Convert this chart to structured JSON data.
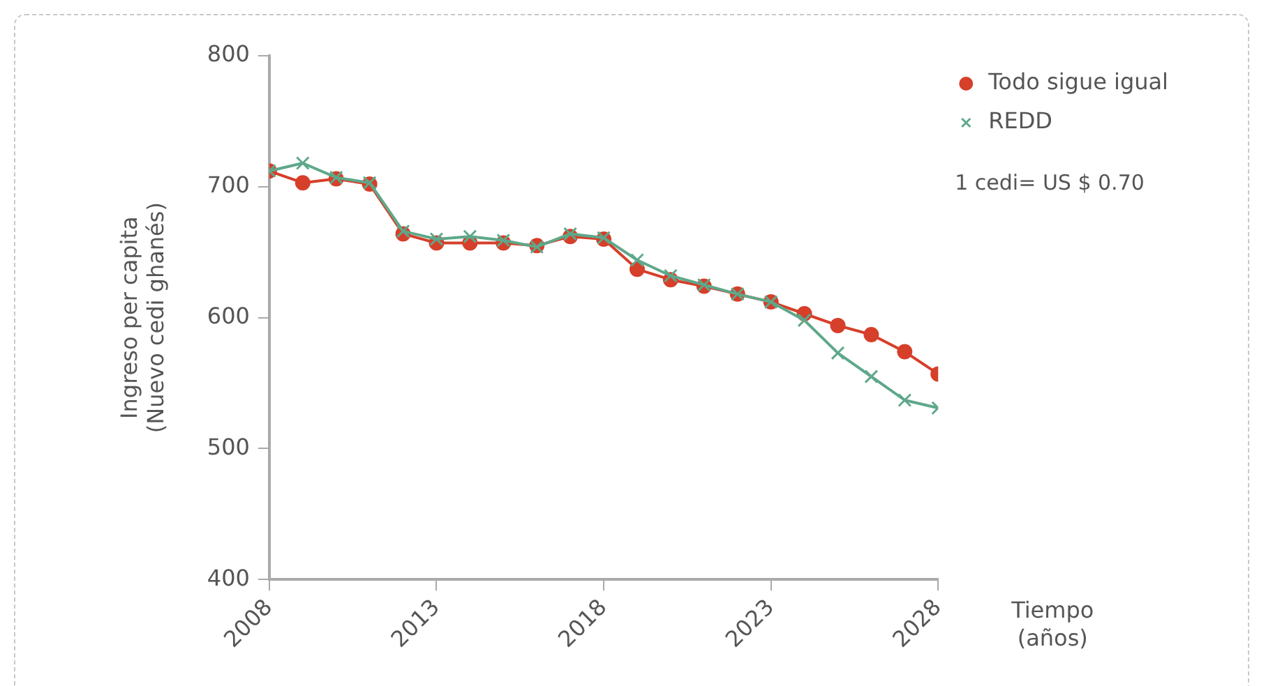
{
  "chart_data": {
    "type": "line",
    "xlabel": "Tiempo\n(años)",
    "ylabel": "Ingreso per capita\n(Nuevo cedi ghanés)",
    "x": [
      2008,
      2009,
      2010,
      2011,
      2012,
      2013,
      2014,
      2015,
      2016,
      2017,
      2018,
      2019,
      2020,
      2021,
      2022,
      2023,
      2024,
      2025,
      2026,
      2027,
      2028
    ],
    "series": [
      {
        "name": "Todo sigue igual",
        "color": "#d63f2a",
        "marker": "circle",
        "values": [
          712,
          703,
          706,
          702,
          664,
          657,
          657,
          657,
          655,
          662,
          660,
          637,
          629,
          624,
          618,
          612,
          603,
          594,
          587,
          574,
          557
        ]
      },
      {
        "name": "REDD",
        "color": "#5ea88a",
        "marker": "cross",
        "values": [
          712,
          718,
          707,
          703,
          666,
          660,
          662,
          659,
          654,
          664,
          661,
          644,
          632,
          625,
          618,
          612,
          598,
          573,
          555,
          537,
          531
        ]
      }
    ],
    "xlim": [
      2008,
      2028
    ],
    "xticks": [
      2008,
      2013,
      2018,
      2023,
      2028
    ],
    "ylim": [
      400,
      800
    ],
    "yticks": [
      400,
      500,
      600,
      700,
      800
    ],
    "grid": false,
    "legend": "top right",
    "line_style": "solid",
    "annotations": [
      "1 cedi= US $ 0.70"
    ]
  }
}
